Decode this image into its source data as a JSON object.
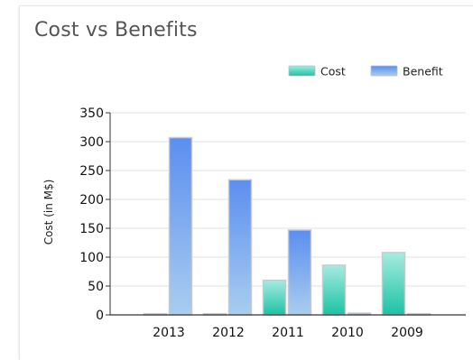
{
  "chart_data": {
    "type": "bar",
    "title": "Cost vs Benefits",
    "xlabel": "",
    "ylabel": "Cost (in M$)",
    "ylim": [
      0,
      350
    ],
    "yticks": [
      0,
      50,
      100,
      150,
      200,
      250,
      300,
      350
    ],
    "grid": true,
    "legend_position": "top-right",
    "categories": [
      "2013",
      "2012",
      "2011",
      "2010",
      "2009"
    ],
    "series": [
      {
        "name": "Cost",
        "values": [
          0,
          0,
          60,
          86,
          108
        ],
        "color_top": "#a6ece0",
        "color_bottom": "#1cc2a4"
      },
      {
        "name": "Benefit",
        "values": [
          307,
          234,
          147,
          3,
          0
        ],
        "color_top": "#5b8ef0",
        "color_bottom": "#a9cdf0"
      }
    ]
  }
}
